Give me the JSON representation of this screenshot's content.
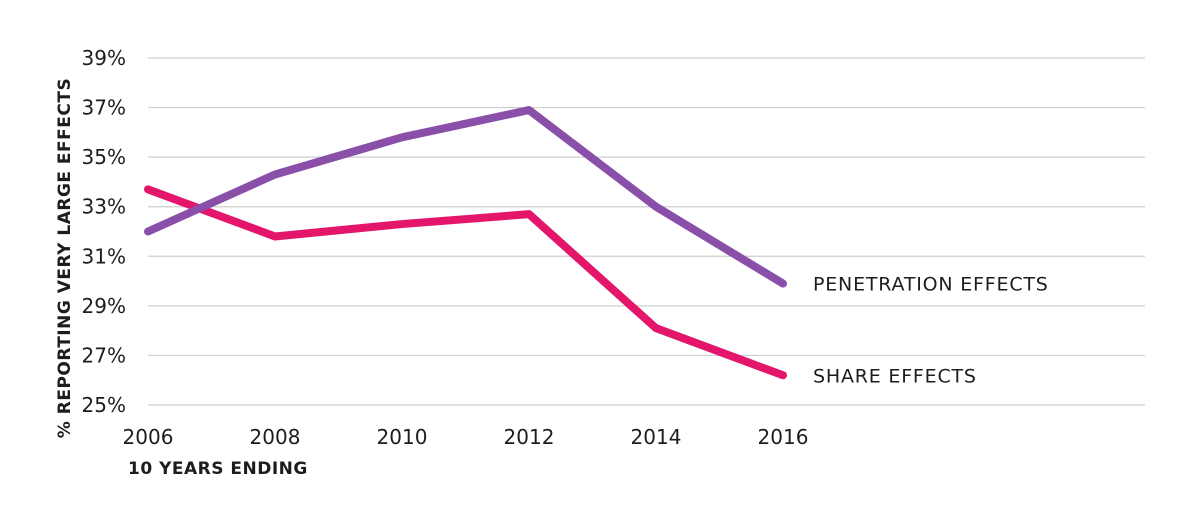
{
  "chart_data": {
    "type": "line",
    "x": [
      "2006",
      "2008",
      "2010",
      "2012",
      "2014",
      "2016"
    ],
    "xlabel": "10 YEARS ENDING",
    "ylabel": "% REPORTING VERY LARGE EFFECTS",
    "ylim": [
      25,
      39
    ],
    "yticks": [
      "39%",
      "37%",
      "35%",
      "33%",
      "31%",
      "29%",
      "27%",
      "25%"
    ],
    "grid": "horizontal",
    "series": [
      {
        "name": "PENETRATION EFFECTS",
        "values": [
          32.0,
          34.3,
          35.8,
          36.9,
          33.0,
          29.9
        ],
        "color": "#8a4fa8"
      },
      {
        "name": "SHARE EFFECTS",
        "values": [
          33.7,
          31.8,
          32.3,
          32.7,
          28.1,
          26.2
        ],
        "color": "#e3166b"
      }
    ]
  }
}
